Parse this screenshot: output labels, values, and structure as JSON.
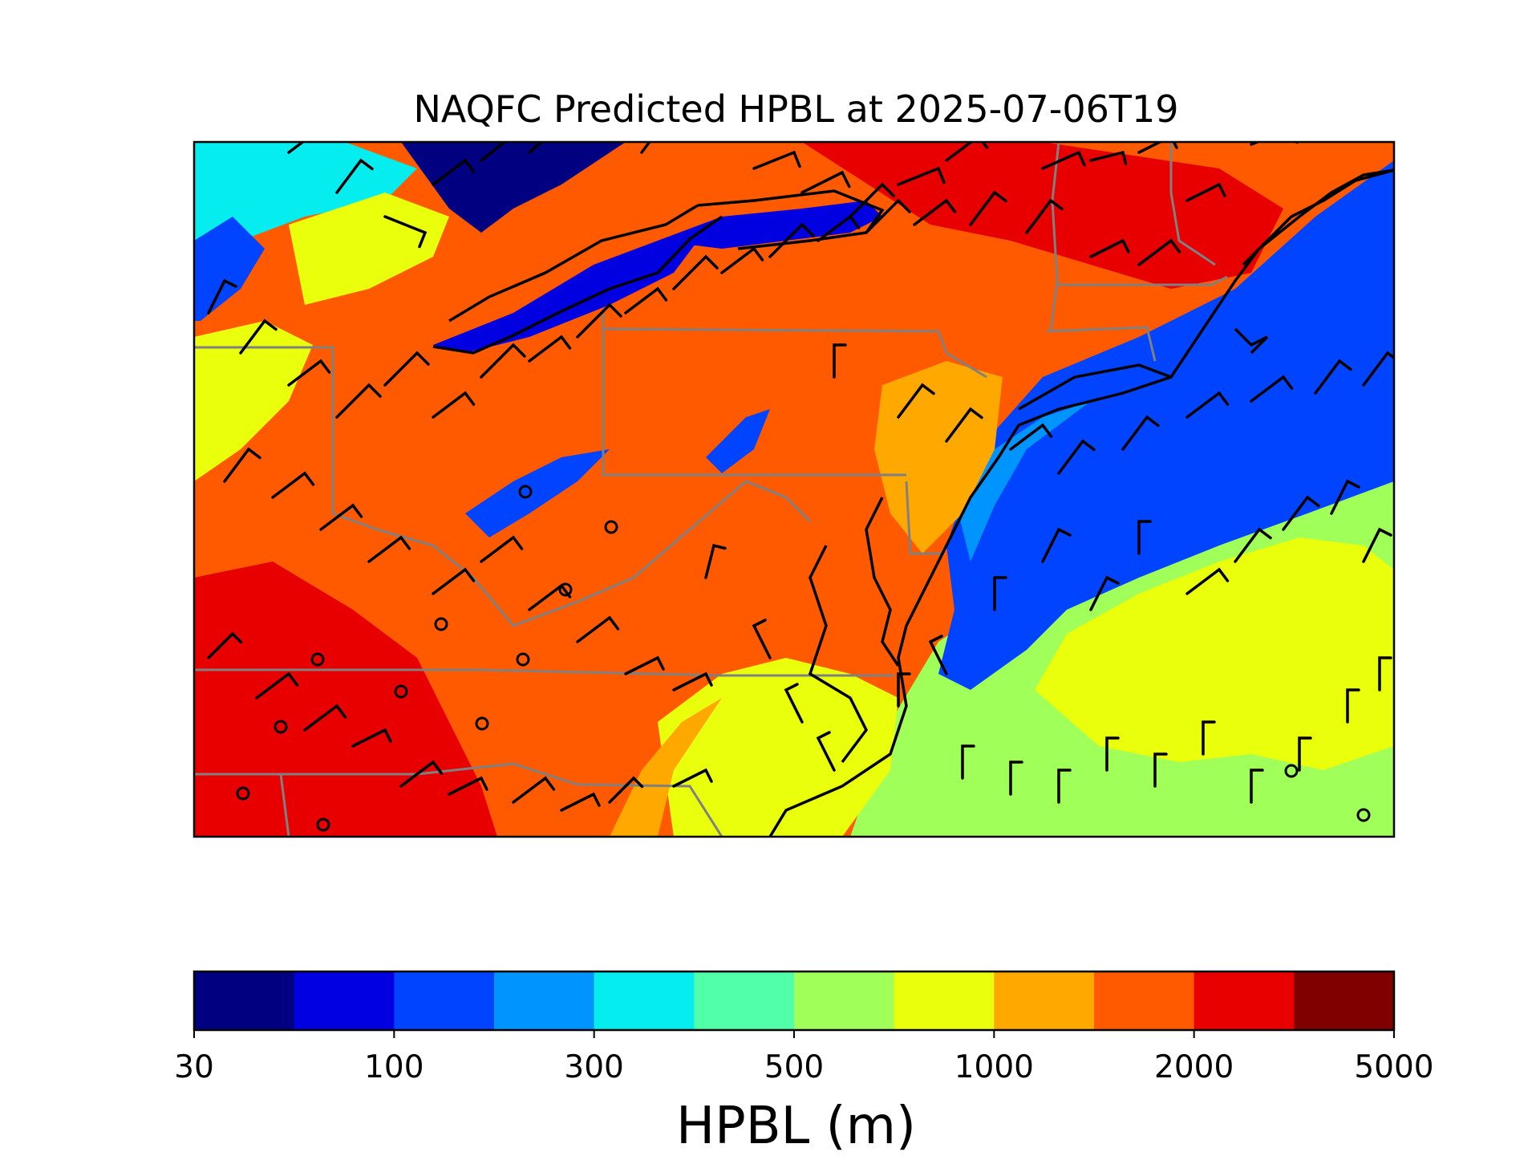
{
  "figure": {
    "title": "NAQFC Predicted HPBL at 2025-07-06T19"
  },
  "colorbar": {
    "label": "HPBL (m)",
    "bounds": [
      30,
      50,
      100,
      200,
      300,
      400,
      500,
      750,
      1000,
      1500,
      2000,
      3000,
      5000
    ],
    "tick_labels": [
      "30",
      "100",
      "300",
      "500",
      "1000",
      "2000",
      "5000"
    ],
    "colors": [
      "#000080",
      "#0000e0",
      "#0044ff",
      "#0094ff",
      "#05edee",
      "#50ffa8",
      "#a0ff58",
      "#eaff0c",
      "#ffa800",
      "#ff5a00",
      "#e80000",
      "#800000"
    ]
  },
  "map": {
    "region": "Mid-Atlantic and Northeast United States",
    "colors": {
      "state_border": "#808080",
      "coastline": "#000000",
      "wind_barb": "#000000",
      "calm_marker": "#000000"
    }
  }
}
